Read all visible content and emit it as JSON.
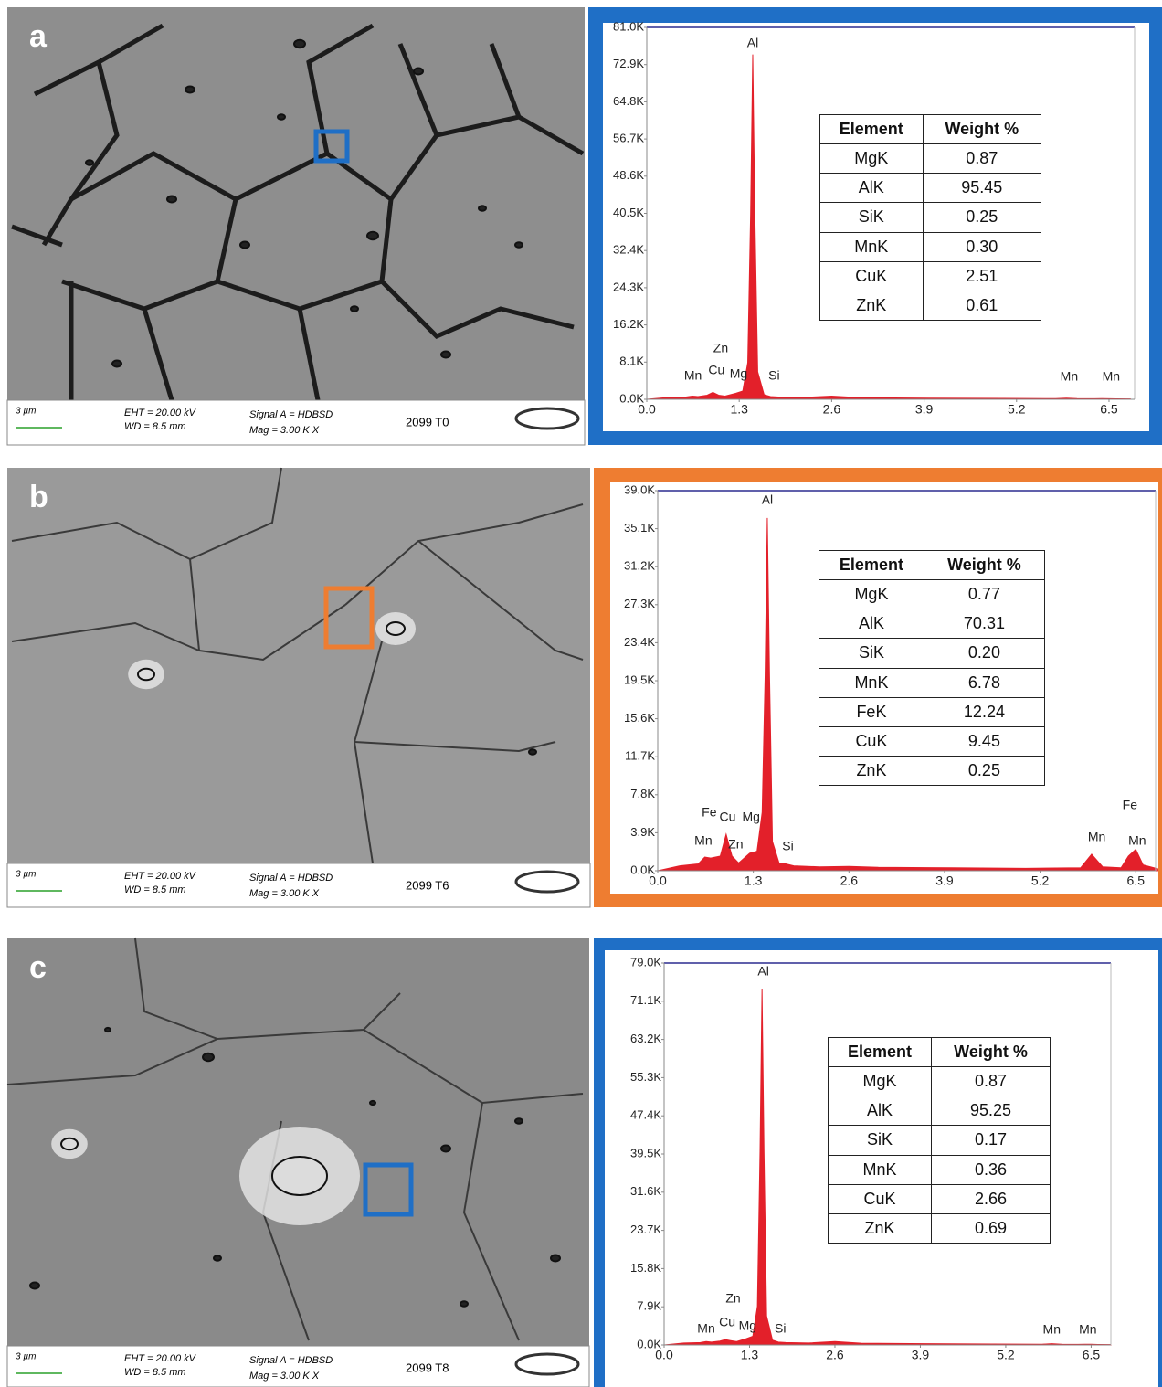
{
  "panels": [
    {
      "letter": "a",
      "frame_color": "#1f6fc6",
      "scale_bar": "3 µm",
      "eht": "EHT = 20.00 kV",
      "wd": "WD =  8.5 mm",
      "signal": "Signal A = HDBSD",
      "mag": "Mag =   3.00 K X",
      "sample": "2099 T0",
      "table": {
        "header": [
          "Element",
          "Weight %"
        ],
        "rows": [
          [
            "MgK",
            "0.87"
          ],
          [
            "AlK",
            "95.45"
          ],
          [
            "SiK",
            "0.25"
          ],
          [
            "MnK",
            "0.30"
          ],
          [
            "CuK",
            "2.51"
          ],
          [
            "ZnK",
            "0.61"
          ]
        ]
      }
    },
    {
      "letter": "b",
      "frame_color": "#ee7d31",
      "scale_bar": "3 µm",
      "eht": "EHT = 20.00 kV",
      "wd": "WD =  8.5 mm",
      "signal": "Signal A = HDBSD",
      "mag": "Mag =   3.00 K X",
      "sample": "2099 T6",
      "table": {
        "header": [
          "Element",
          "Weight %"
        ],
        "rows": [
          [
            "MgK",
            "0.77"
          ],
          [
            "AlK",
            "70.31"
          ],
          [
            "SiK",
            "0.20"
          ],
          [
            "MnK",
            "6.78"
          ],
          [
            "FeK",
            "12.24"
          ],
          [
            "CuK",
            "9.45"
          ],
          [
            "ZnK",
            "0.25"
          ]
        ]
      }
    },
    {
      "letter": "c",
      "frame_color": "#1f6fc6",
      "scale_bar": "3 µm",
      "eht": "EHT = 20.00 kV",
      "wd": "WD =  8.5 mm",
      "signal": "Signal A = HDBSD",
      "mag": "Mag =   3.00 K X",
      "sample": "2099 T8",
      "table": {
        "header": [
          "Element",
          "Weight %"
        ],
        "rows": [
          [
            "MgK",
            "0.87"
          ],
          [
            "AlK",
            "95.25"
          ],
          [
            "SiK",
            "0.17"
          ],
          [
            "MnK",
            "0.36"
          ],
          [
            "CuK",
            "2.66"
          ],
          [
            "ZnK",
            "0.69"
          ]
        ]
      }
    }
  ],
  "chart_data": [
    {
      "type": "area",
      "color": "#e3202a",
      "x": [
        0,
        0.3,
        0.55,
        0.64,
        0.72,
        0.85,
        0.93,
        1.01,
        1.1,
        1.25,
        1.35,
        1.42,
        1.46,
        1.49,
        1.52,
        1.56,
        1.65,
        1.74,
        1.85,
        2.2,
        2.6,
        3.0,
        4.0,
        5.0,
        5.75,
        5.9,
        6.05,
        6.3,
        6.4,
        6.5,
        6.6,
        6.8
      ],
      "values": [
        0,
        400,
        500,
        700,
        600,
        900,
        1500,
        900,
        700,
        1300,
        1800,
        8000,
        40000,
        75100,
        40000,
        6000,
        1000,
        600,
        500,
        400,
        700,
        350,
        250,
        200,
        150,
        250,
        150,
        120,
        150,
        130,
        100,
        80
      ],
      "xlim": [
        0,
        6.86
      ],
      "xticks": [
        {
          "value": 0,
          "label": "0.0"
        },
        1.3,
        2.6,
        3.9,
        5.2,
        6.5
      ],
      "ylim": [
        0,
        81000
      ],
      "yticks": [
        {
          "value": 0,
          "label": "0.0K"
        },
        {
          "value": 8100,
          "label": "8.1K"
        },
        {
          "value": 16200,
          "label": "16.2K"
        },
        {
          "value": 24300,
          "label": "24.3K"
        },
        {
          "value": 32400,
          "label": "32.4K"
        },
        {
          "value": 40500,
          "label": "40.5K"
        },
        {
          "value": 48600,
          "label": "48.6K"
        },
        {
          "value": 56700,
          "label": "56.7K"
        },
        {
          "value": 64800,
          "label": "64.8K"
        },
        {
          "value": 72900,
          "label": "72.9K"
        },
        {
          "value": 81000,
          "label": "81.0K"
        }
      ],
      "annotations": [
        {
          "text": "Al",
          "x": 1.49
        },
        {
          "text": "Zn",
          "x": 1.04
        },
        {
          "text": "Mn",
          "x": 0.65
        },
        {
          "text": "Cu",
          "x": 0.98
        },
        {
          "text": "Mg",
          "x": 1.29
        },
        {
          "text": "Si",
          "x": 1.79
        },
        {
          "text": "Mn",
          "x": 5.94
        },
        {
          "text": "Mn",
          "x": 6.53
        }
      ]
    },
    {
      "type": "area",
      "color": "#e3202a",
      "x": [
        0,
        0.3,
        0.55,
        0.64,
        0.72,
        0.85,
        0.93,
        1.01,
        1.1,
        1.25,
        1.35,
        1.42,
        1.46,
        1.49,
        1.52,
        1.56,
        1.65,
        1.74,
        1.85,
        2.2,
        2.6,
        3.0,
        4.0,
        5.0,
        5.75,
        5.9,
        6.05,
        6.3,
        6.4,
        6.5,
        6.6,
        6.8
      ],
      "values": [
        0,
        500,
        700,
        1400,
        1300,
        1500,
        3750,
        1500,
        800,
        1800,
        2000,
        6000,
        20000,
        36200,
        20000,
        3000,
        800,
        700,
        500,
        400,
        450,
        350,
        300,
        250,
        300,
        1700,
        400,
        300,
        1500,
        2200,
        600,
        200
      ],
      "xlim": [
        0,
        6.77
      ],
      "xticks": [
        {
          "value": 0,
          "label": "0.0"
        },
        1.3,
        2.6,
        3.9,
        5.2,
        6.5
      ],
      "ylim": [
        0,
        39000
      ],
      "yticks": [
        {
          "value": 0,
          "label": "0.0K"
        },
        {
          "value": 3900,
          "label": "3.9K"
        },
        {
          "value": 7800,
          "label": "7.8K"
        },
        {
          "value": 11700,
          "label": "11.7K"
        },
        {
          "value": 15600,
          "label": "15.6K"
        },
        {
          "value": 19500,
          "label": "19.5K"
        },
        {
          "value": 23400,
          "label": "23.4K"
        },
        {
          "value": 27300,
          "label": "27.3K"
        },
        {
          "value": 31200,
          "label": "31.2K"
        },
        {
          "value": 35100,
          "label": "35.1K"
        },
        {
          "value": 39000,
          "label": "39.0K"
        }
      ],
      "annotations": [
        {
          "text": "Al",
          "x": 1.49
        },
        {
          "text": "Fe",
          "x": 0.7
        },
        {
          "text": "Cu",
          "x": 0.95
        },
        {
          "text": "Mg",
          "x": 1.27
        },
        {
          "text": "Mn",
          "x": 0.62
        },
        {
          "text": "Zn",
          "x": 1.06
        },
        {
          "text": "Si",
          "x": 1.77
        },
        {
          "text": "Mn",
          "x": 5.97
        },
        {
          "text": "Fe",
          "x": 6.42
        },
        {
          "text": "Mn",
          "x": 6.52
        }
      ]
    },
    {
      "type": "area",
      "color": "#e3202a",
      "x": [
        0,
        0.3,
        0.55,
        0.64,
        0.72,
        0.85,
        0.93,
        1.01,
        1.1,
        1.25,
        1.35,
        1.42,
        1.46,
        1.49,
        1.52,
        1.56,
        1.65,
        1.74,
        1.85,
        2.2,
        2.6,
        3.0,
        4.0,
        5.0,
        5.75,
        5.9,
        6.05,
        6.3,
        6.4,
        6.5,
        6.6,
        6.8
      ],
      "values": [
        0,
        400,
        500,
        700,
        600,
        800,
        1100,
        900,
        700,
        1300,
        1800,
        8000,
        40000,
        73700,
        40000,
        6000,
        1000,
        600,
        500,
        400,
        700,
        350,
        250,
        200,
        150,
        250,
        150,
        120,
        150,
        130,
        100,
        80
      ],
      "xlim": [
        0,
        6.8
      ],
      "xticks": [
        {
          "value": 0,
          "label": "0.0"
        },
        1.3,
        2.6,
        3.9,
        5.2,
        6.5
      ],
      "ylim": [
        0,
        79000
      ],
      "yticks": [
        {
          "value": 0,
          "label": "0.0K"
        },
        {
          "value": 7900,
          "label": "7.9K"
        },
        {
          "value": 15800,
          "label": "15.8K"
        },
        {
          "value": 23700,
          "label": "23.7K"
        },
        {
          "value": 31600,
          "label": "31.6K"
        },
        {
          "value": 39500,
          "label": "39.5K"
        },
        {
          "value": 47400,
          "label": "47.4K"
        },
        {
          "value": 55300,
          "label": "55.3K"
        },
        {
          "value": 63200,
          "label": "63.2K"
        },
        {
          "value": 71100,
          "label": "71.1K"
        },
        {
          "value": 79000,
          "label": "79.0K"
        }
      ],
      "annotations": [
        {
          "text": "Al",
          "x": 1.51
        },
        {
          "text": "Zn",
          "x": 1.05
        },
        {
          "text": "Mn",
          "x": 0.64
        },
        {
          "text": "Cu",
          "x": 0.96
        },
        {
          "text": "Mg",
          "x": 1.27
        },
        {
          "text": "Si",
          "x": 1.77
        },
        {
          "text": "Mn",
          "x": 5.9
        },
        {
          "text": "Mn",
          "x": 6.45
        }
      ]
    }
  ]
}
